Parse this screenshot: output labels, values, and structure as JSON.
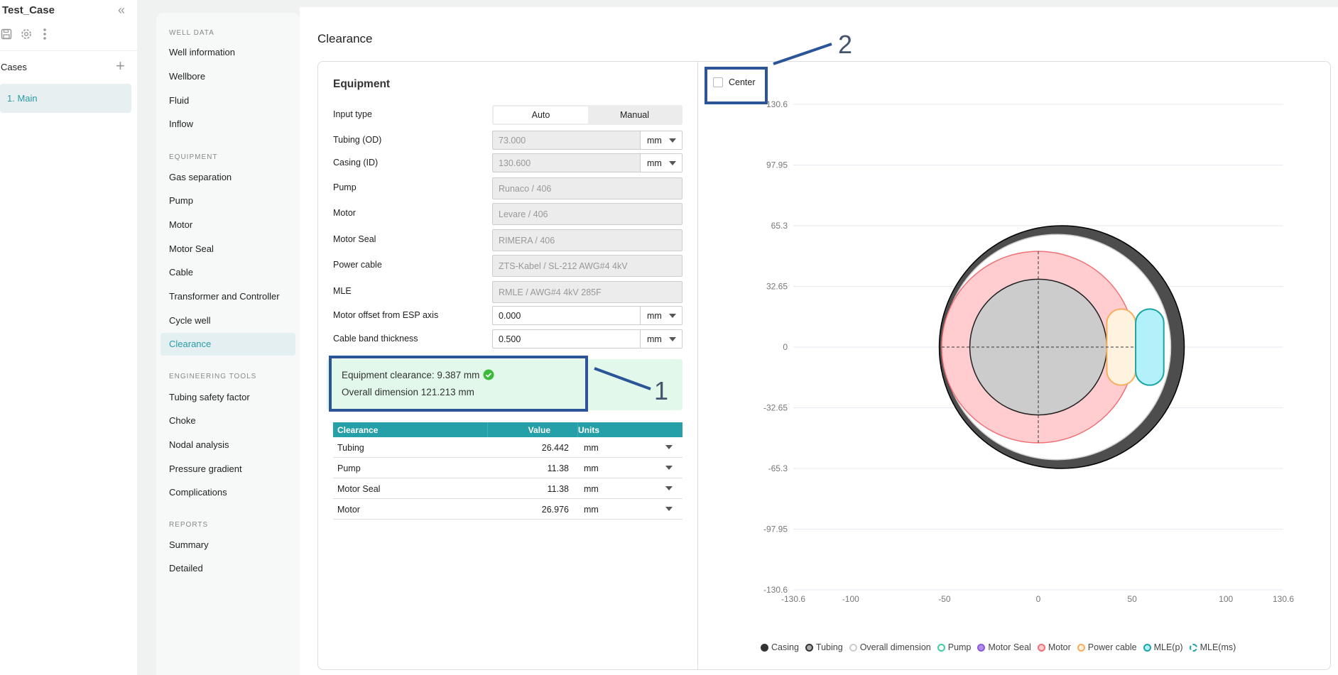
{
  "sidebar": {
    "project": "Test_Case",
    "cases_label": "Cases",
    "cases": [
      {
        "label": "1. Main"
      }
    ]
  },
  "nav": {
    "sections": [
      {
        "title": "WELL DATA",
        "items": [
          "Well information",
          "Wellbore",
          "Fluid",
          "Inflow"
        ]
      },
      {
        "title": "EQUIPMENT",
        "items": [
          "Gas separation",
          "Pump",
          "Motor",
          "Motor Seal",
          "Cable",
          "Transformer and Controller",
          "Cycle well",
          "Clearance"
        ]
      },
      {
        "title": "ENGINEERING TOOLS",
        "items": [
          "Tubing safety factor",
          "Choke",
          "Nodal analysis",
          "Pressure gradient",
          "Complications"
        ]
      },
      {
        "title": "REPORTS",
        "items": [
          "Summary",
          "Detailed"
        ]
      }
    ],
    "active": "Clearance"
  },
  "page_title": "Clearance",
  "equipment": {
    "title": "Equipment",
    "input_type": {
      "label": "Input type",
      "options": [
        "Auto",
        "Manual"
      ],
      "selected": "Auto"
    },
    "fields": [
      {
        "label": "Tubing (OD)",
        "value": "73.000",
        "unit": "mm",
        "editable": false
      },
      {
        "label": "Casing (ID)",
        "value": "130.600",
        "unit": "mm",
        "editable": false
      },
      {
        "label": "Pump",
        "value": "Runaco / 406"
      },
      {
        "label": "Motor",
        "value": "Levare / 406"
      },
      {
        "label": "Motor Seal",
        "value": "RIMERA / 406"
      },
      {
        "label": "Power cable",
        "value": "ZTS-Kabel / SL-212 AWG#4 4kV"
      },
      {
        "label": "MLE",
        "value": "RMLE / AWG#4 4kV 285F"
      },
      {
        "label": "Motor offset from ESP axis",
        "value": "0.000",
        "unit": "mm",
        "editable": true
      },
      {
        "label": "Cable band thickness",
        "value": "0.500",
        "unit": "mm",
        "editable": true
      }
    ],
    "result": {
      "clearance": "Equipment clearance: 9.387 mm",
      "overall": "Overall dimension 121.213 mm"
    },
    "table": {
      "headers": [
        "Clearance",
        "Value",
        "Units"
      ],
      "rows": [
        [
          "Tubing",
          "26.442",
          "mm"
        ],
        [
          "Pump",
          "11.38",
          "mm"
        ],
        [
          "Motor Seal",
          "11.38",
          "mm"
        ],
        [
          "Motor",
          "26.976",
          "mm"
        ]
      ]
    }
  },
  "annotations": [
    "1",
    "2"
  ],
  "chart": {
    "center_label": "Center",
    "center_checked": false
  },
  "chart_data": {
    "type": "scatter",
    "title": "",
    "xlim": [
      -130.6,
      130.6
    ],
    "ylim": [
      -130.6,
      130.6
    ],
    "xticks": [
      "-130.6",
      "-100",
      "-50",
      "0",
      "50",
      "100",
      "130.6"
    ],
    "xtick_values": [
      -130.6,
      -100,
      -50,
      0,
      50,
      100,
      130.6
    ],
    "yticks": [
      "130.6",
      "97.95",
      "65.3",
      "32.65",
      "0",
      "-32.65",
      "-65.3",
      "-97.95",
      "-130.6"
    ],
    "ytick_values": [
      130.6,
      97.95,
      65.3,
      32.65,
      0,
      -32.65,
      -65.3,
      -97.95,
      -130.6
    ],
    "grid": true,
    "shapes": [
      {
        "name": "Casing",
        "kind": "circle",
        "cx": 12.5,
        "cy": 0,
        "r": 65.3,
        "fill": "#4d4d4d",
        "stroke": "#000000"
      },
      {
        "name": "Overall dimension",
        "kind": "circle",
        "cx": 10,
        "cy": 0,
        "r": 60.6,
        "fill": "#ffffff",
        "stroke": "#cccccc"
      },
      {
        "name": "Motor",
        "kind": "circle",
        "cx": 0,
        "cy": 0,
        "r": 51.5,
        "fill": "#ffcccf",
        "stroke": "#f07075"
      },
      {
        "name": "Tubing",
        "kind": "circle",
        "cx": 0,
        "cy": 0,
        "r": 36.5,
        "fill": "#cccccc",
        "stroke": "#222222"
      },
      {
        "name": "Power cable",
        "kind": "rect",
        "x0": 36.5,
        "x1": 51.9,
        "y0": -20.5,
        "y1": 20.5,
        "fill": "#fff2df",
        "stroke": "#f9ad5c"
      },
      {
        "name": "MLE(p)",
        "kind": "rect",
        "x0": 51.9,
        "x1": 66.9,
        "y0": -20.5,
        "y1": 20.5,
        "fill": "#b3f1fa",
        "stroke": "#1aa6a6"
      }
    ],
    "legend": [
      {
        "name": "Casing",
        "color": "#333333",
        "fill": "#333333"
      },
      {
        "name": "Tubing",
        "color": "#333333",
        "fill": "#aaaaaa"
      },
      {
        "name": "Overall dimension",
        "color": "#cccccc",
        "fill": "#ffffff"
      },
      {
        "name": "Pump",
        "color": "#3fcf9b",
        "fill": "#ffffff"
      },
      {
        "name": "Motor Seal",
        "color": "#8a5ad8",
        "fill": "#b58cf0"
      },
      {
        "name": "Motor",
        "color": "#f07075",
        "fill": "#ffcccf"
      },
      {
        "name": "Power cable",
        "color": "#f9ad5c",
        "fill": "#fff2df"
      },
      {
        "name": "MLE(p)",
        "color": "#1aa6a6",
        "fill": "#b3f1fa"
      },
      {
        "name": "MLE(ms)",
        "color": "#1aa6a6",
        "fill": "#ffffff"
      }
    ],
    "legend_position": "bottom"
  }
}
